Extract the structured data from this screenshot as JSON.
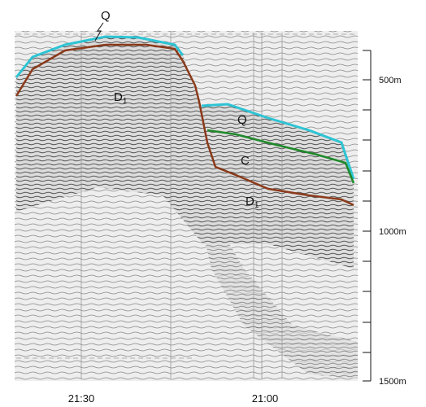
{
  "profile": {
    "horizon_labels": [
      {
        "text": "Q"
      },
      {
        "text": "D",
        "sub": "1"
      },
      {
        "text": "Q"
      },
      {
        "text": "C"
      },
      {
        "text": "D",
        "sub": "1"
      }
    ],
    "depth_labels": [
      "500m",
      "1000m",
      "1500m"
    ],
    "time_labels": [
      "21:30",
      "21:00"
    ]
  }
}
